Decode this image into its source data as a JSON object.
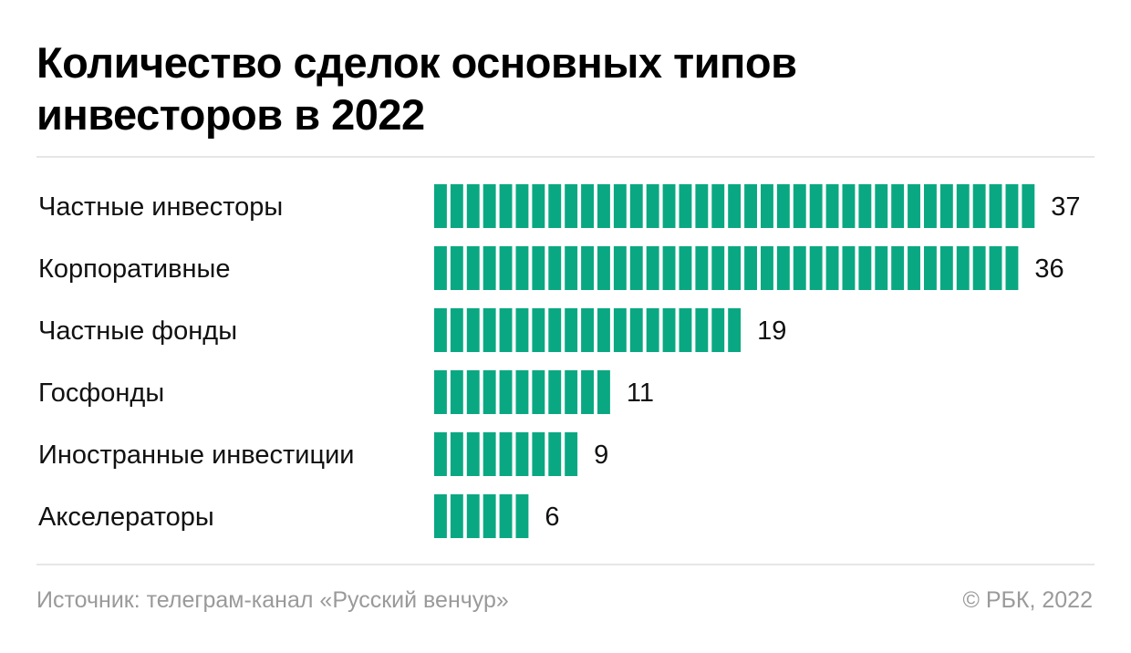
{
  "header": {
    "title": "Количество сделок основных типов инвесторов в 2022"
  },
  "footer": {
    "source": "Источник: телеграм-канал «Русский венчур»",
    "copyright": "© РБК, 2022"
  },
  "colors": {
    "bar": "#0aa882",
    "rule": "#e6e6e6",
    "footer_text": "#9a9a9a"
  },
  "chart_data": {
    "type": "bar",
    "orientation": "horizontal",
    "title": "Количество сделок основных типов инвесторов в 2022",
    "categories": [
      "Частные инвесторы",
      "Корпоративные",
      "Частные фонды",
      "Госфонды",
      "Иностранные инвестиции",
      "Акселераторы"
    ],
    "values": [
      37,
      36,
      19,
      11,
      9,
      6
    ],
    "value_labels": [
      "37",
      "36",
      "19",
      "11",
      "9",
      "6"
    ],
    "xlim": [
      0,
      37
    ],
    "grid": false,
    "legend": "none",
    "bar_style": "segmented, one segment per unit"
  }
}
